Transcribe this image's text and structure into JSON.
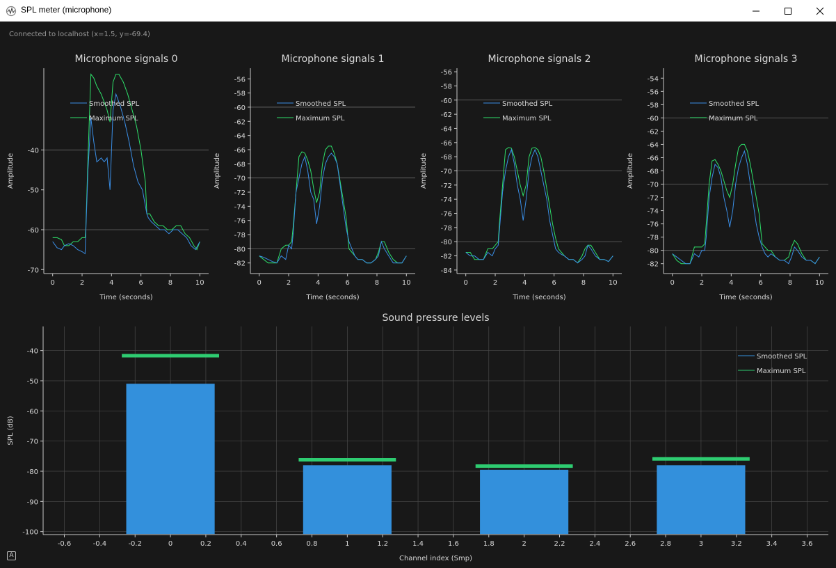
{
  "window": {
    "title": "SPL meter (microphone)",
    "icon": "waveform-icon",
    "controls": [
      "minimize-icon",
      "maximize-icon",
      "close-icon"
    ]
  },
  "status": {
    "connection": "Connected to localhost (x=1.5, y=-69.4)"
  },
  "colors": {
    "background": "#181818",
    "grid": "#4a4a4a",
    "axis": "#c8c8c8",
    "text": "#d8d8d8",
    "smoothed": "#3a8ee6",
    "maximum": "#2ee06a",
    "bar": "#3390dc",
    "max_marker": "#2ecc71"
  },
  "chart_data": [
    {
      "type": "line",
      "title": "Microphone signals 0",
      "xlabel": "Time (seconds)",
      "ylabel": "Amplitude",
      "xlim": [
        -0.6,
        10.6
      ],
      "ylim": [
        -71,
        -19.5
      ],
      "xticks": [
        0,
        2,
        4,
        6,
        8,
        10
      ],
      "yticks": [
        -70,
        -60,
        -50,
        -40
      ],
      "grid_y": [
        -60,
        -40
      ],
      "grid_x": [],
      "legend": "top-left",
      "series": [
        {
          "name": "Smoothed SPL",
          "color": "#3a8ee6",
          "x": [
            0,
            0.3,
            0.6,
            0.8,
            1.1,
            1.4,
            1.7,
            2.0,
            2.2,
            2.25,
            2.4,
            2.6,
            2.8,
            3.0,
            3.3,
            3.5,
            3.7,
            3.9,
            4.1,
            4.3,
            4.6,
            4.9,
            5.2,
            5.5,
            5.8,
            6.1,
            6.4,
            6.5,
            6.7,
            7.0,
            7.3,
            7.6,
            7.9,
            8.2,
            8.5,
            8.8,
            9.1,
            9.4,
            9.7,
            10.0
          ],
          "y": [
            -63,
            -64.5,
            -65,
            -64,
            -63.5,
            -64,
            -65,
            -65.5,
            -66,
            -61,
            -45,
            -32,
            -38,
            -43,
            -42,
            -43,
            -42,
            -50,
            -30,
            -26,
            -29,
            -33,
            -38,
            -44,
            -48,
            -50,
            -56,
            -57,
            -58,
            -59,
            -60,
            -60,
            -61,
            -60,
            -60,
            -61,
            -62,
            -64,
            -65,
            -63
          ]
        },
        {
          "name": "Maximum SPL",
          "color": "#2ee06a",
          "x": [
            0,
            0.3,
            0.6,
            0.8,
            1.1,
            1.4,
            1.7,
            2.0,
            2.2,
            2.25,
            2.4,
            2.6,
            2.8,
            3.0,
            3.3,
            3.5,
            3.7,
            3.9,
            4.1,
            4.3,
            4.5,
            4.8,
            5.1,
            5.4,
            5.7,
            6.0,
            6.3,
            6.4,
            6.6,
            6.9,
            7.2,
            7.5,
            7.8,
            8.1,
            8.4,
            8.7,
            9.0,
            9.3,
            9.6,
            9.8,
            10.0
          ],
          "y": [
            -62,
            -62,
            -62.5,
            -64,
            -64,
            -63,
            -63,
            -62,
            -62,
            -60,
            -42,
            -21,
            -22,
            -24,
            -26,
            -28,
            -30,
            -33,
            -23,
            -21,
            -21,
            -23,
            -26,
            -30,
            -34,
            -40,
            -48,
            -56,
            -56,
            -58,
            -59,
            -59,
            -60,
            -60,
            -59,
            -59,
            -61,
            -62,
            -64,
            -65,
            -63
          ]
        }
      ]
    },
    {
      "type": "line",
      "title": "Microphone signals 1",
      "xlabel": "Time (seconds)",
      "ylabel": "Amplitude",
      "xlim": [
        -0.6,
        10.6
      ],
      "ylim": [
        -83.5,
        -54.5
      ],
      "xticks": [
        0,
        2,
        4,
        6,
        8,
        10
      ],
      "yticks": [
        -82,
        -80,
        -78,
        -76,
        -74,
        -72,
        -70,
        -68,
        -66,
        -64,
        -62,
        -60,
        -58,
        -56
      ],
      "grid_y": [
        -80,
        -70,
        -60
      ],
      "grid_x": [],
      "legend": "top-left",
      "series": [
        {
          "name": "Smoothed SPL",
          "color": "#3a8ee6",
          "x": [
            0,
            0.3,
            0.6,
            0.9,
            1.2,
            1.5,
            1.8,
            2.0,
            2.2,
            2.3,
            2.5,
            2.7,
            2.9,
            3.1,
            3.3,
            3.5,
            3.7,
            3.9,
            4.1,
            4.3,
            4.5,
            4.7,
            4.9,
            5.1,
            5.3,
            5.5,
            5.7,
            5.9,
            6.1,
            6.3,
            6.5,
            6.7,
            7.0,
            7.3,
            7.6,
            7.9,
            8.1,
            8.3,
            8.5,
            8.8,
            9.1,
            9.4,
            9.7,
            10.0
          ],
          "y": [
            -81,
            -81.2,
            -81.5,
            -81.8,
            -82,
            -81,
            -81.5,
            -79.5,
            -80,
            -78,
            -72,
            -70,
            -68,
            -67,
            -69,
            -72,
            -73,
            -76.5,
            -74,
            -70,
            -68,
            -67,
            -66.5,
            -67,
            -68,
            -71,
            -74,
            -77,
            -79,
            -80,
            -81,
            -81.5,
            -81.5,
            -82,
            -82,
            -81.5,
            -81,
            -79,
            -80,
            -81,
            -82,
            -82,
            -82,
            -81
          ]
        },
        {
          "name": "Maximum SPL",
          "color": "#2ee06a",
          "x": [
            0,
            0.3,
            0.6,
            0.9,
            1.2,
            1.5,
            1.8,
            2.0,
            2.2,
            2.3,
            2.5,
            2.7,
            2.9,
            3.1,
            3.3,
            3.5,
            3.7,
            3.9,
            4.1,
            4.3,
            4.5,
            4.7,
            4.9,
            5.1,
            5.3,
            5.5,
            5.7,
            5.9,
            6.1,
            6.3,
            6.5,
            6.7,
            7.0,
            7.3,
            7.6,
            7.9,
            8.1,
            8.3,
            8.5,
            8.8,
            9.1,
            9.4,
            9.7,
            10.0
          ],
          "y": [
            -81,
            -81.5,
            -82,
            -82,
            -82,
            -80,
            -79.5,
            -79.5,
            -79,
            -77,
            -72,
            -67,
            -66.3,
            -66.5,
            -67.5,
            -69,
            -71.5,
            -73.5,
            -72,
            -68,
            -66,
            -65.5,
            -65.5,
            -66.5,
            -68,
            -70.5,
            -73,
            -75.5,
            -80,
            -80.5,
            -81,
            -81.5,
            -81.5,
            -82,
            -82,
            -81.5,
            -80.5,
            -79,
            -79,
            -80.5,
            -81.5,
            -82,
            -82,
            -81
          ]
        }
      ]
    },
    {
      "type": "line",
      "title": "Microphone signals 2",
      "xlabel": "Time (seconds)",
      "ylabel": "Amplitude",
      "xlim": [
        -0.6,
        10.6
      ],
      "ylim": [
        -84.5,
        -55.5
      ],
      "xticks": [
        0,
        2,
        4,
        6,
        8,
        10
      ],
      "yticks": [
        -84,
        -82,
        -80,
        -78,
        -76,
        -74,
        -72,
        -70,
        -68,
        -66,
        -64,
        -62,
        -60,
        -58,
        -56
      ],
      "grid_y": [
        -80,
        -70,
        -60
      ],
      "grid_x": [],
      "legend": "top-left",
      "series": [
        {
          "name": "Smoothed SPL",
          "color": "#3a8ee6",
          "x": [
            0,
            0.3,
            0.6,
            0.9,
            1.2,
            1.5,
            1.8,
            2.0,
            2.2,
            2.3,
            2.5,
            2.7,
            2.9,
            3.1,
            3.3,
            3.5,
            3.7,
            3.9,
            4.1,
            4.3,
            4.5,
            4.7,
            4.9,
            5.1,
            5.3,
            5.5,
            5.7,
            5.9,
            6.1,
            6.3,
            6.5,
            6.7,
            7.0,
            7.3,
            7.6,
            7.9,
            8.1,
            8.3,
            8.5,
            8.8,
            9.1,
            9.4,
            9.7,
            10.0
          ],
          "y": [
            -81.5,
            -82,
            -82,
            -82.5,
            -82.5,
            -81.5,
            -82,
            -81,
            -80.5,
            -78,
            -73,
            -70,
            -68,
            -67,
            -69,
            -72,
            -74,
            -77,
            -74,
            -70,
            -68,
            -67,
            -68,
            -70,
            -72,
            -74,
            -77,
            -79,
            -81,
            -81.5,
            -81.8,
            -82,
            -82.5,
            -82.5,
            -83,
            -82.5,
            -82,
            -80.5,
            -81,
            -82,
            -82.5,
            -82.5,
            -82.8,
            -82
          ]
        },
        {
          "name": "Maximum SPL",
          "color": "#2ee06a",
          "x": [
            0,
            0.3,
            0.6,
            0.9,
            1.2,
            1.5,
            1.8,
            2.0,
            2.2,
            2.3,
            2.5,
            2.7,
            2.9,
            3.1,
            3.3,
            3.5,
            3.7,
            3.9,
            4.1,
            4.3,
            4.5,
            4.7,
            4.9,
            5.1,
            5.3,
            5.5,
            5.7,
            5.9,
            6.1,
            6.3,
            6.5,
            6.7,
            7.0,
            7.3,
            7.6,
            7.9,
            8.1,
            8.3,
            8.5,
            8.8,
            9.1,
            9.4,
            9.7,
            10.0
          ],
          "y": [
            -81.5,
            -81.5,
            -82.5,
            -82.5,
            -82.5,
            -81,
            -81,
            -80.5,
            -80,
            -77,
            -72,
            -67,
            -66.7,
            -66.8,
            -68,
            -70,
            -72,
            -73.5,
            -72,
            -68,
            -66.8,
            -66.7,
            -67,
            -68,
            -70,
            -72.5,
            -75,
            -77.5,
            -79.5,
            -81,
            -81.5,
            -82,
            -82.5,
            -82.5,
            -83,
            -82,
            -81,
            -80.5,
            -80.5,
            -81.5,
            -82.5,
            -82.5,
            -82.8,
            -82
          ]
        }
      ]
    },
    {
      "type": "line",
      "title": "Microphone signals 3",
      "xlabel": "Time (seconds)",
      "ylabel": "Amplitude",
      "xlim": [
        -0.6,
        10.6
      ],
      "ylim": [
        -83.5,
        -52.5
      ],
      "xticks": [
        0,
        2,
        4,
        6,
        8,
        10
      ],
      "yticks": [
        -82,
        -80,
        -78,
        -76,
        -74,
        -72,
        -70,
        -68,
        -66,
        -64,
        -62,
        -60,
        -58,
        -56,
        -54
      ],
      "grid_y": [
        -80,
        -70,
        -60
      ],
      "grid_x": [],
      "legend": "top-left",
      "series": [
        {
          "name": "Smoothed SPL",
          "color": "#3a8ee6",
          "x": [
            0,
            0.3,
            0.6,
            0.9,
            1.2,
            1.5,
            1.8,
            2.0,
            2.2,
            2.3,
            2.5,
            2.7,
            2.9,
            3.1,
            3.3,
            3.5,
            3.7,
            3.9,
            4.1,
            4.3,
            4.5,
            4.7,
            4.9,
            5.1,
            5.3,
            5.5,
            5.7,
            5.9,
            6.1,
            6.3,
            6.5,
            6.7,
            7.0,
            7.3,
            7.6,
            7.9,
            8.1,
            8.3,
            8.5,
            8.8,
            9.1,
            9.4,
            9.7,
            10.0
          ],
          "y": [
            -80.5,
            -81,
            -81.5,
            -82,
            -82,
            -80.5,
            -81,
            -80,
            -80,
            -78,
            -72,
            -69,
            -67,
            -67.5,
            -69,
            -72,
            -74,
            -76.5,
            -74,
            -70,
            -67.5,
            -66,
            -65,
            -67,
            -70,
            -73,
            -76,
            -78,
            -79.5,
            -80.5,
            -81,
            -80.5,
            -81,
            -81.5,
            -81.5,
            -82,
            -81,
            -79.5,
            -80,
            -81,
            -81.5,
            -81.5,
            -82,
            -81
          ]
        },
        {
          "name": "Maximum SPL",
          "color": "#2ee06a",
          "x": [
            0,
            0.3,
            0.6,
            0.9,
            1.2,
            1.5,
            1.8,
            2.0,
            2.2,
            2.3,
            2.5,
            2.7,
            2.9,
            3.1,
            3.3,
            3.5,
            3.7,
            3.9,
            4.1,
            4.3,
            4.5,
            4.7,
            4.9,
            5.1,
            5.3,
            5.5,
            5.7,
            5.9,
            6.1,
            6.3,
            6.5,
            6.7,
            7.0,
            7.3,
            7.6,
            7.9,
            8.1,
            8.3,
            8.5,
            8.8,
            9.1,
            9.4,
            9.7,
            10.0
          ],
          "y": [
            -80.5,
            -81.5,
            -82,
            -82,
            -82,
            -79.5,
            -79.5,
            -79.5,
            -79,
            -76,
            -70,
            -66.5,
            -66.3,
            -67,
            -68,
            -69.5,
            -71,
            -72,
            -70,
            -67,
            -64.5,
            -64,
            -64,
            -65,
            -67,
            -69.5,
            -72,
            -74.5,
            -79,
            -79.5,
            -80,
            -80,
            -81,
            -81.5,
            -81.5,
            -81,
            -79.5,
            -78.5,
            -79,
            -80.5,
            -81.5,
            -81.5,
            -82,
            -81
          ]
        }
      ]
    },
    {
      "type": "bar",
      "title": "Sound pressure levels",
      "xlabel": "Channel index (Smp)",
      "ylabel": "SPL (dB)",
      "xlim": [
        -0.72,
        3.72
      ],
      "ylim": [
        -101,
        -32
      ],
      "xticks": [
        -0.6,
        -0.4,
        -0.2,
        0,
        0.2,
        0.4,
        0.6,
        0.8,
        1,
        1.2,
        1.4,
        1.6,
        1.8,
        2,
        2.2,
        2.4,
        2.6,
        2.8,
        3,
        3.2,
        3.4,
        3.6
      ],
      "yticks": [
        -100,
        -90,
        -80,
        -70,
        -60,
        -50,
        -40
      ],
      "grid": true,
      "legend": "top-right",
      "bar_width": 0.5,
      "marker_width": 0.55,
      "baseline": -100.8,
      "categories": [
        0,
        1,
        2,
        3
      ],
      "series": [
        {
          "name": "Smoothed SPL",
          "color": "#3390dc",
          "values": [
            -51,
            -78,
            -79.5,
            -78
          ]
        },
        {
          "name": "Maximum SPL",
          "color": "#2ecc71",
          "values": [
            -41.7,
            -76.2,
            -78.3,
            -75.9
          ]
        }
      ]
    }
  ],
  "autoscale_button": "A"
}
